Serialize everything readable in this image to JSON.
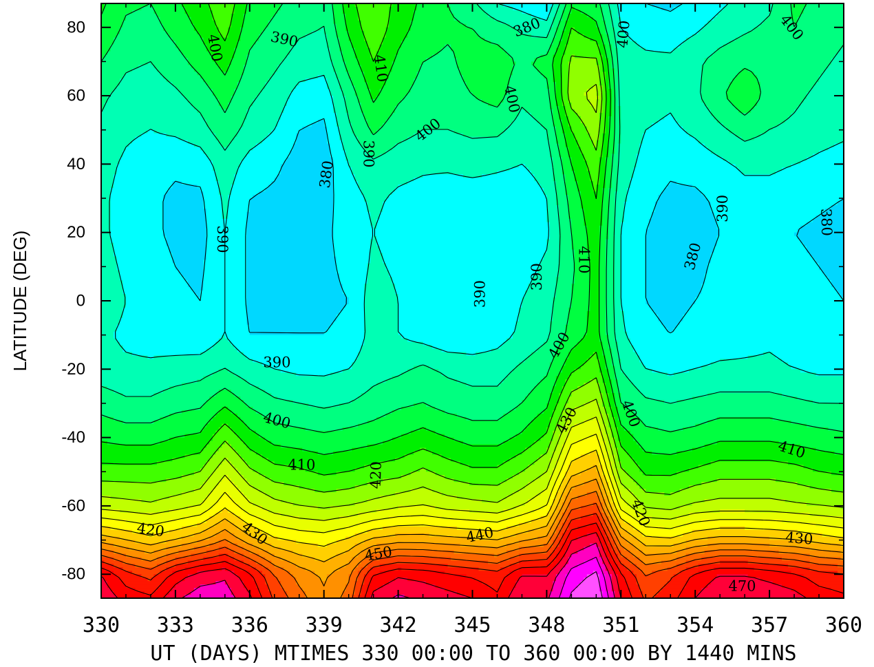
{
  "chart_data": {
    "type": "heatmap",
    "title": "",
    "xlabel": "UT (DAYS) MTIMES 330 00:00 TO 360 00:00 BY 1440 MINS",
    "ylabel": "LATITUDE (DEG)",
    "xlim": [
      330,
      360
    ],
    "ylim": [
      -87,
      87
    ],
    "x_ticks": [
      "330",
      "333",
      "336",
      "339",
      "342",
      "345",
      "348",
      "351",
      "354",
      "357",
      "360"
    ],
    "y_ticks": [
      "80",
      "60",
      "40",
      "20",
      "0",
      "-20",
      "-40",
      "-60",
      "-80"
    ],
    "x": [
      330,
      331,
      332,
      333,
      334,
      335,
      336,
      337,
      338,
      339,
      340,
      341,
      342,
      343,
      344,
      345,
      346,
      347,
      348,
      349,
      350,
      351,
      352,
      353,
      354,
      355,
      356,
      357,
      358,
      359,
      360
    ],
    "y": [
      -87,
      -80,
      -70,
      -60,
      -50,
      -40,
      -30,
      -20,
      -10,
      0,
      10,
      20,
      30,
      40,
      50,
      60,
      70,
      80,
      87
    ],
    "z": [
      [
        474,
        468,
        466,
        474,
        478,
        478,
        471,
        459,
        452,
        446,
        452,
        472,
        476,
        474,
        472,
        470,
        466,
        475,
        474,
        486,
        490,
        470,
        459,
        463,
        470,
        475,
        475,
        474,
        472,
        468,
        466
      ],
      [
        470,
        462,
        458,
        467,
        472,
        474,
        466,
        455,
        448,
        444,
        449,
        465,
        469,
        468,
        466,
        464,
        462,
        470,
        470,
        482,
        486,
        466,
        455,
        459,
        466,
        470,
        470,
        468,
        466,
        462,
        461
      ],
      [
        443,
        440,
        437,
        440,
        444,
        450,
        442,
        436,
        434,
        433,
        436,
        441,
        443,
        443,
        442,
        441,
        440,
        444,
        447,
        470,
        474,
        447,
        437,
        436,
        440,
        442,
        442,
        441,
        440,
        438,
        436
      ],
      [
        423,
        422,
        421,
        423,
        425,
        434,
        426,
        422,
        420,
        419,
        420,
        422,
        424,
        425,
        423,
        422,
        421,
        425,
        430,
        453,
        456,
        428,
        419,
        418,
        421,
        422,
        422,
        422,
        421,
        420,
        419
      ],
      [
        412,
        412,
        412,
        413,
        415,
        424,
        416,
        412,
        411,
        409,
        410,
        412,
        413,
        416,
        413,
        411,
        411,
        415,
        420,
        438,
        442,
        416,
        409,
        409,
        411,
        413,
        413,
        413,
        412,
        410,
        409
      ],
      [
        404,
        403,
        403,
        405,
        406,
        414,
        407,
        403,
        402,
        401,
        402,
        403,
        405,
        407,
        405,
        403,
        403,
        406,
        411,
        428,
        431,
        408,
        402,
        401,
        402,
        404,
        404,
        404,
        403,
        402,
        401
      ],
      [
        398,
        396,
        396,
        398,
        399,
        404,
        399,
        396,
        395,
        394,
        395,
        397,
        399,
        400,
        398,
        397,
        397,
        400,
        404,
        418,
        421,
        400,
        396,
        395,
        396,
        397,
        397,
        397,
        396,
        395,
        395
      ],
      [
        392,
        391,
        391,
        392,
        393,
        395,
        392,
        390,
        389,
        389,
        390,
        393,
        394,
        396,
        394,
        393,
        393,
        396,
        399,
        409,
        413,
        395,
        390,
        389,
        390,
        391,
        391,
        391,
        390,
        389,
        389
      ],
      [
        391,
        389,
        388,
        387,
        386,
        390,
        385,
        385,
        385,
        385,
        386,
        392,
        390,
        388,
        386,
        386,
        388,
        391,
        394,
        402,
        407,
        391,
        386,
        385,
        386,
        387,
        388,
        389,
        388,
        387,
        386
      ],
      [
        393,
        390,
        388,
        386,
        385,
        390,
        384,
        384,
        384,
        384,
        385,
        393,
        390,
        387,
        385,
        385,
        387,
        390,
        393,
        400,
        407,
        390,
        385,
        384,
        385,
        386,
        387,
        388,
        387,
        386,
        385
      ],
      [
        392,
        389,
        387,
        385,
        384,
        390,
        384,
        384,
        384,
        384,
        386,
        391,
        389,
        386,
        385,
        385,
        387,
        388,
        391,
        399,
        407,
        390,
        385,
        384,
        384,
        386,
        387,
        387,
        386,
        385,
        384
      ],
      [
        391,
        388,
        386,
        384,
        383,
        390,
        384,
        384,
        384,
        384,
        387,
        390,
        388,
        386,
        385,
        385,
        386,
        386,
        389,
        400,
        408,
        390,
        385,
        383,
        383,
        385,
        386,
        386,
        385,
        384,
        383
      ],
      [
        391,
        388,
        386,
        384,
        384,
        391,
        385,
        384,
        383,
        383,
        388,
        391,
        389,
        388,
        387,
        387,
        387,
        387,
        390,
        402,
        410,
        391,
        386,
        384,
        384,
        386,
        388,
        388,
        387,
        386,
        385
      ],
      [
        392,
        389,
        387,
        386,
        387,
        393,
        388,
        386,
        383,
        382,
        390,
        394,
        392,
        391,
        391,
        392,
        391,
        390,
        392,
        405,
        413,
        393,
        388,
        386,
        387,
        389,
        391,
        391,
        390,
        389,
        388
      ],
      [
        394,
        391,
        390,
        391,
        393,
        398,
        393,
        390,
        385,
        384,
        394,
        401,
        397,
        395,
        395,
        396,
        396,
        393,
        395,
        410,
        418,
        394,
        390,
        389,
        391,
        394,
        397,
        395,
        394,
        392,
        391
      ],
      [
        396,
        393,
        392,
        394,
        397,
        402,
        396,
        393,
        388,
        387,
        397,
        406,
        401,
        398,
        398,
        400,
        402,
        396,
        398,
        418,
        422,
        393,
        392,
        391,
        394,
        399,
        404,
        398,
        396,
        394,
        392
      ],
      [
        400,
        396,
        395,
        398,
        402,
        407,
        399,
        396,
        393,
        392,
        402,
        410,
        404,
        400,
        399,
        402,
        403,
        399,
        402,
        416,
        416,
        392,
        391,
        391,
        394,
        397,
        399,
        399,
        398,
        396,
        394
      ],
      [
        404,
        399,
        398,
        402,
        406,
        412,
        402,
        399,
        396,
        395,
        406,
        414,
        407,
        403,
        401,
        400,
        397,
        394,
        392,
        410,
        406,
        390,
        388,
        387,
        389,
        392,
        394,
        396,
        400,
        398,
        396
      ],
      [
        406,
        401,
        400,
        404,
        408,
        414,
        404,
        401,
        398,
        396,
        408,
        415,
        408,
        404,
        400,
        396,
        390,
        388,
        385,
        404,
        402,
        388,
        385,
        384,
        386,
        389,
        392,
        394,
        401,
        399,
        397
      ]
    ],
    "contour_levels": [
      375,
      380,
      385,
      390,
      395,
      400,
      405,
      410,
      415,
      420,
      425,
      430,
      435,
      440,
      445,
      450,
      455,
      460,
      465,
      470,
      475,
      480,
      485
    ],
    "colors": [
      "#0050e0",
      "#0090ff",
      "#00d8ff",
      "#00ffff",
      "#00ffb4",
      "#00ff80",
      "#00ff40",
      "#00f000",
      "#40ff00",
      "#90ff00",
      "#c0ff00",
      "#e8ff00",
      "#ffff00",
      "#ffd000",
      "#ffb000",
      "#ff9000",
      "#ff6800",
      "#ff4000",
      "#ff1500",
      "#ff0000",
      "#ff0038",
      "#ff00c0",
      "#ff00ff",
      "#ff50ff"
    ],
    "contour_labels": [
      {
        "text": "400",
        "x": 334.6,
        "y": 74,
        "angle": 80
      },
      {
        "text": "390",
        "x": 337.4,
        "y": 76.5,
        "angle": 12
      },
      {
        "text": "410",
        "x": 341.3,
        "y": 68,
        "angle": 82
      },
      {
        "text": "380",
        "x": 347.2,
        "y": 80,
        "angle": -22
      },
      {
        "text": "400",
        "x": 346.6,
        "y": 59,
        "angle": 78
      },
      {
        "text": "400",
        "x": 351.1,
        "y": 78,
        "angle": -85
      },
      {
        "text": "400",
        "x": 357.9,
        "y": 80,
        "angle": 52
      },
      {
        "text": "400",
        "x": 343.2,
        "y": 50,
        "angle": -38
      },
      {
        "text": "390",
        "x": 340.8,
        "y": 43,
        "angle": 90
      },
      {
        "text": "380",
        "x": 339.1,
        "y": 37,
        "angle": -82
      },
      {
        "text": "390",
        "x": 334.9,
        "y": 18,
        "angle": 90
      },
      {
        "text": "380",
        "x": 359.3,
        "y": 23,
        "angle": 88
      },
      {
        "text": "390",
        "x": 355.1,
        "y": 27,
        "angle": -90
      },
      {
        "text": "380",
        "x": 353.9,
        "y": 13,
        "angle": -75
      },
      {
        "text": "410",
        "x": 349.5,
        "y": 12,
        "angle": 90
      },
      {
        "text": "390",
        "x": 347.6,
        "y": 7,
        "angle": -90
      },
      {
        "text": "390",
        "x": 345.3,
        "y": 2,
        "angle": -90
      },
      {
        "text": "390",
        "x": 337.1,
        "y": -18,
        "angle": 0
      },
      {
        "text": "400",
        "x": 348.5,
        "y": -13,
        "angle": -60
      },
      {
        "text": "400",
        "x": 337.1,
        "y": -35,
        "angle": 15
      },
      {
        "text": "430",
        "x": 348.8,
        "y": -35,
        "angle": -62
      },
      {
        "text": "400",
        "x": 351.4,
        "y": -33,
        "angle": 70
      },
      {
        "text": "410",
        "x": 338.1,
        "y": -48,
        "angle": 0
      },
      {
        "text": "420",
        "x": 341.1,
        "y": -51,
        "angle": -88
      },
      {
        "text": "410",
        "x": 357.9,
        "y": -43.5,
        "angle": 18
      },
      {
        "text": "420",
        "x": 351.8,
        "y": -62,
        "angle": 70
      },
      {
        "text": "420",
        "x": 332.0,
        "y": -67,
        "angle": 8
      },
      {
        "text": "430",
        "x": 336.2,
        "y": -68,
        "angle": 38
      },
      {
        "text": "440",
        "x": 345.3,
        "y": -68.5,
        "angle": -12
      },
      {
        "text": "430",
        "x": 358.2,
        "y": -69.5,
        "angle": 5
      },
      {
        "text": "450",
        "x": 341.2,
        "y": -74,
        "angle": -10
      },
      {
        "text": "470",
        "x": 355.9,
        "y": -83.5,
        "angle": 0
      }
    ]
  }
}
